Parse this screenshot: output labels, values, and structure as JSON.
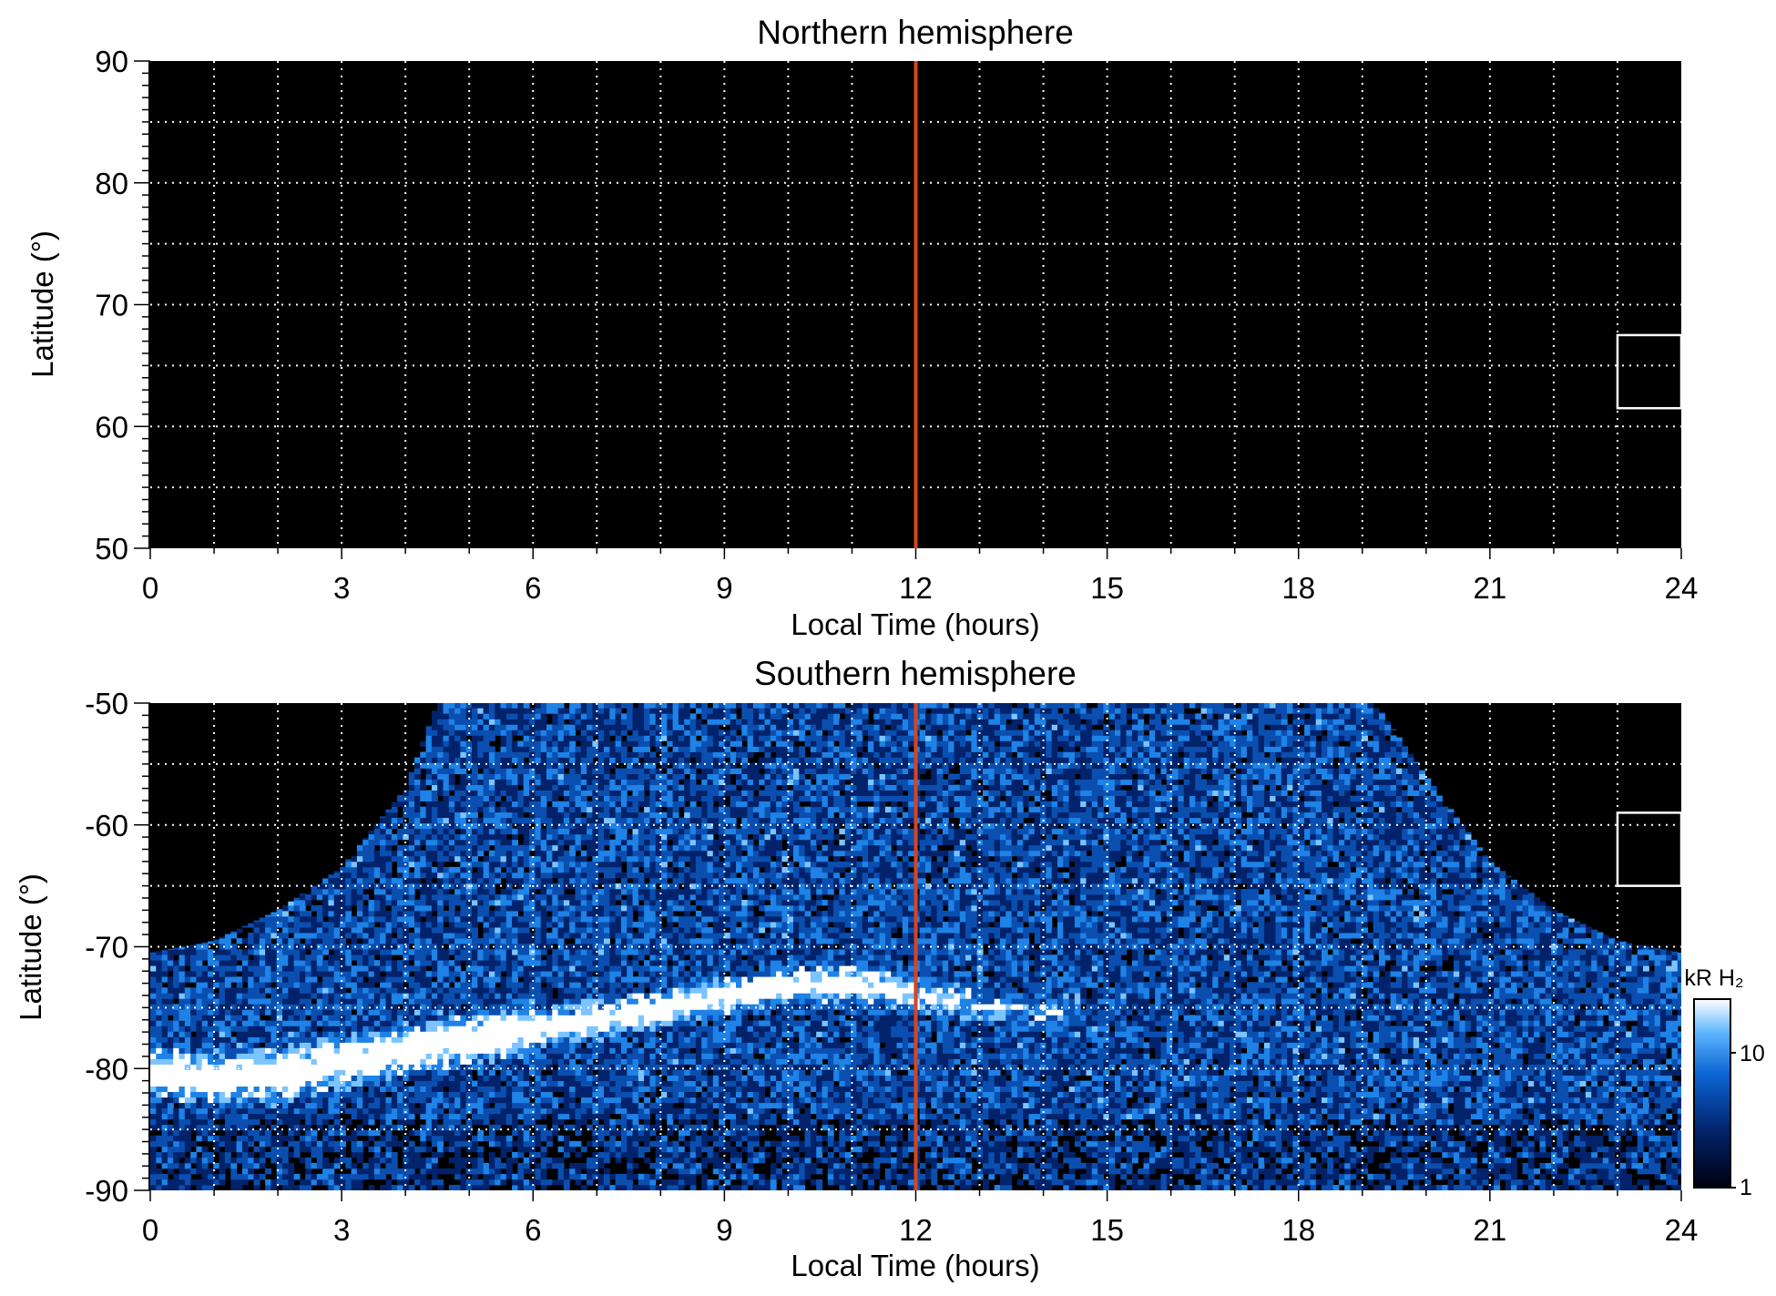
{
  "colors": {
    "background": "#000000",
    "grid": "#ffffff",
    "noon_line": "#d9441f",
    "box": "#ffffff",
    "colorbar_low": "#000010",
    "colorbar_mid": "#0a64d2",
    "colorbar_high": "#ffffff"
  },
  "chart_data": [
    {
      "type": "heatmap",
      "title": "Northern hemisphere",
      "xlabel": "Local Time (hours)",
      "ylabel": "Latitude (°)",
      "xlim": [
        0,
        24
      ],
      "ylim": [
        50,
        90
      ],
      "x_ticks": [
        "0",
        "3",
        "6",
        "9",
        "12",
        "15",
        "18",
        "21",
        "24"
      ],
      "y_ticks": [
        "90",
        "80",
        "70",
        "60",
        "50"
      ],
      "grid": true,
      "noon_line_x": 12,
      "box": {
        "x": [
          23,
          24
        ],
        "y": [
          61.5,
          67.5
        ]
      },
      "emission": "none"
    },
    {
      "type": "heatmap",
      "title": "Southern hemisphere",
      "xlabel": "Local Time (hours)",
      "ylabel": "Latitude (°)",
      "xlim": [
        0,
        24
      ],
      "ylim": [
        -90,
        -50
      ],
      "x_ticks": [
        "0",
        "3",
        "6",
        "9",
        "12",
        "15",
        "18",
        "21",
        "24"
      ],
      "y_ticks": [
        "-50",
        "-60",
        "-70",
        "-80",
        "-90"
      ],
      "grid": true,
      "noon_line_x": 12,
      "box": {
        "x": [
          23,
          24
        ],
        "y": [
          -65,
          -59
        ]
      },
      "oval_center": {
        "x": [
          0,
          1,
          2,
          3,
          4,
          5,
          6,
          7,
          8,
          9,
          10,
          11,
          12,
          13,
          14
        ],
        "y": [
          -80,
          -80.8,
          -80.5,
          -79.5,
          -78.5,
          -77.5,
          -76.8,
          -76,
          -75,
          -74,
          -73.2,
          -73,
          -73.8,
          -74.8,
          -75.5
        ]
      },
      "coverage_edge": {
        "x": [
          0,
          1,
          2,
          3,
          4,
          4.5,
          19.2,
          20,
          21,
          22,
          23,
          24
        ],
        "y": [
          -70.5,
          -69.5,
          -67,
          -63.5,
          -57,
          -50,
          -50,
          -56,
          -63,
          -67,
          -69.5,
          -70.5
        ]
      },
      "colorbar": {
        "label": "kR H₂",
        "ticks": [
          "10",
          "1"
        ],
        "tick_values": [
          10,
          1
        ],
        "range": [
          1,
          25
        ],
        "scale": "log"
      }
    }
  ]
}
